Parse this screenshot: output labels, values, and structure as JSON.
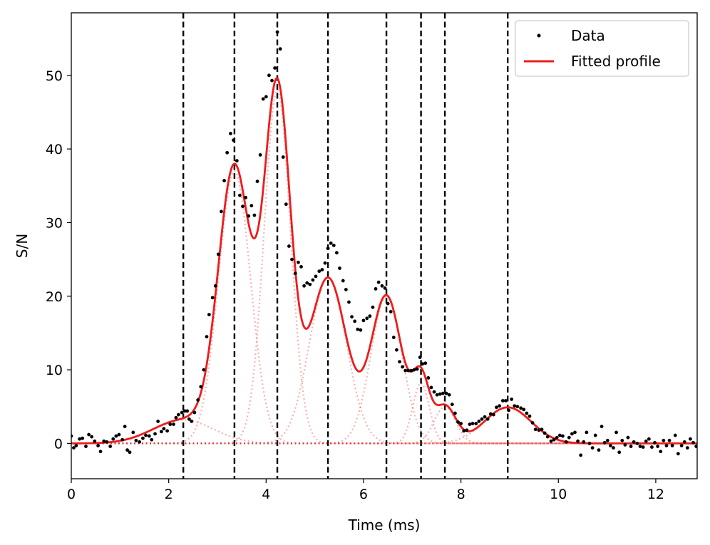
{
  "chart_data": {
    "type": "scatter",
    "title": "",
    "xlabel": "Time (ms)",
    "ylabel": "S/N",
    "xlim": [
      0,
      12.85
    ],
    "ylim": [
      -4.8,
      58.5
    ],
    "xticks": [
      0,
      2,
      4,
      6,
      8,
      10,
      12
    ],
    "yticks": [
      0,
      10,
      20,
      30,
      40,
      50
    ],
    "xtick_labels": [
      "0",
      "2",
      "4",
      "6",
      "8",
      "10",
      "12"
    ],
    "ytick_labels": [
      "0",
      "10",
      "20",
      "30",
      "40",
      "50"
    ],
    "grid": false,
    "legend": {
      "position": "top-right",
      "entries": [
        {
          "label": "Data",
          "marker": "dot",
          "color": "#000000"
        },
        {
          "label": "Fitted profile",
          "marker": "line",
          "color": "#ee1c1c"
        }
      ]
    },
    "vlines": [
      2.3,
      3.35,
      4.23,
      5.27,
      6.47,
      7.18,
      7.67,
      8.96
    ],
    "components": [
      {
        "amp": 3.2,
        "mu": 2.3,
        "sigma": 0.62
      },
      {
        "amp": 37.0,
        "mu": 3.35,
        "sigma": 0.33
      },
      {
        "amp": 48.0,
        "mu": 4.23,
        "sigma": 0.27
      },
      {
        "amp": 22.5,
        "mu": 5.27,
        "sigma": 0.38
      },
      {
        "amp": 20.0,
        "mu": 6.47,
        "sigma": 0.32
      },
      {
        "amp": 8.2,
        "mu": 7.18,
        "sigma": 0.17
      },
      {
        "amp": 5.0,
        "mu": 7.67,
        "sigma": 0.22
      },
      {
        "amp": 4.9,
        "mu": 8.96,
        "sigma": 0.48
      }
    ],
    "series": [
      {
        "name": "Data",
        "points": [
          [
            0.0,
            1.0
          ],
          [
            0.05,
            -0.6
          ],
          [
            0.1,
            -0.3
          ],
          [
            0.17,
            0.6
          ],
          [
            0.23,
            0.7
          ],
          [
            0.3,
            -0.4
          ],
          [
            0.36,
            1.2
          ],
          [
            0.42,
            0.9
          ],
          [
            0.48,
            0.3
          ],
          [
            0.55,
            -0.3
          ],
          [
            0.6,
            -1.1
          ],
          [
            0.67,
            0.3
          ],
          [
            0.73,
            0.2
          ],
          [
            0.8,
            -0.4
          ],
          [
            0.86,
            0.6
          ],
          [
            0.92,
            1.0
          ],
          [
            0.98,
            1.2
          ],
          [
            1.05,
            0.5
          ],
          [
            1.1,
            2.3
          ],
          [
            1.15,
            -0.9
          ],
          [
            1.2,
            -1.2
          ],
          [
            1.27,
            1.5
          ],
          [
            1.33,
            0.4
          ],
          [
            1.4,
            0.2
          ],
          [
            1.47,
            0.7
          ],
          [
            1.53,
            1.1
          ],
          [
            1.6,
            1.0
          ],
          [
            1.65,
            0.5
          ],
          [
            1.72,
            1.3
          ],
          [
            1.78,
            3.0
          ],
          [
            1.85,
            1.6
          ],
          [
            1.9,
            2.0
          ],
          [
            1.97,
            1.7
          ],
          [
            2.03,
            2.6
          ],
          [
            2.1,
            2.6
          ],
          [
            2.15,
            3.5
          ],
          [
            2.2,
            3.9
          ],
          [
            2.27,
            4.2
          ],
          [
            2.33,
            4.4
          ],
          [
            2.38,
            4.4
          ],
          [
            2.42,
            3.3
          ],
          [
            2.47,
            3.0
          ],
          [
            2.53,
            4.2
          ],
          [
            2.6,
            5.9
          ],
          [
            2.66,
            7.7
          ],
          [
            2.72,
            10.0
          ],
          [
            2.78,
            14.5
          ],
          [
            2.83,
            17.5
          ],
          [
            2.9,
            19.8
          ],
          [
            2.96,
            21.4
          ],
          [
            3.02,
            25.7
          ],
          [
            3.08,
            31.5
          ],
          [
            3.14,
            35.7
          ],
          [
            3.2,
            39.5
          ],
          [
            3.27,
            42.1
          ],
          [
            3.33,
            41.2
          ],
          [
            3.4,
            38.4
          ],
          [
            3.46,
            33.7
          ],
          [
            3.52,
            32.2
          ],
          [
            3.58,
            33.4
          ],
          [
            3.64,
            30.9
          ],
          [
            3.7,
            32.3
          ],
          [
            3.76,
            31.0
          ],
          [
            3.82,
            35.6
          ],
          [
            3.88,
            39.2
          ],
          [
            3.94,
            46.8
          ],
          [
            4.0,
            47.1
          ],
          [
            4.06,
            50.0
          ],
          [
            4.12,
            49.3
          ],
          [
            4.18,
            51.0
          ],
          [
            4.23,
            55.9
          ],
          [
            4.29,
            53.6
          ],
          [
            4.35,
            38.9
          ],
          [
            4.41,
            32.5
          ],
          [
            4.47,
            26.8
          ],
          [
            4.53,
            25.0
          ],
          [
            4.6,
            23.1
          ],
          [
            4.66,
            24.6
          ],
          [
            4.72,
            24.0
          ],
          [
            4.78,
            21.4
          ],
          [
            4.84,
            21.8
          ],
          [
            4.9,
            21.6
          ],
          [
            4.96,
            22.2
          ],
          [
            5.02,
            22.7
          ],
          [
            5.09,
            23.4
          ],
          [
            5.15,
            23.6
          ],
          [
            5.21,
            24.5
          ],
          [
            5.27,
            26.5
          ],
          [
            5.33,
            27.2
          ],
          [
            5.39,
            26.9
          ],
          [
            5.45,
            25.9
          ],
          [
            5.51,
            23.8
          ],
          [
            5.58,
            22.1
          ],
          [
            5.64,
            20.9
          ],
          [
            5.7,
            19.2
          ],
          [
            5.76,
            17.2
          ],
          [
            5.82,
            16.6
          ],
          [
            5.88,
            15.5
          ],
          [
            5.94,
            15.4
          ],
          [
            6.0,
            16.7
          ],
          [
            6.07,
            17.0
          ],
          [
            6.13,
            17.3
          ],
          [
            6.19,
            18.5
          ],
          [
            6.25,
            21.0
          ],
          [
            6.31,
            21.9
          ],
          [
            6.38,
            21.4
          ],
          [
            6.44,
            21.1
          ],
          [
            6.5,
            19.0
          ],
          [
            6.56,
            17.9
          ],
          [
            6.62,
            14.4
          ],
          [
            6.68,
            12.7
          ],
          [
            6.74,
            11.1
          ],
          [
            6.8,
            10.4
          ],
          [
            6.86,
            9.9
          ],
          [
            6.92,
            9.9
          ],
          [
            6.98,
            9.9
          ],
          [
            7.04,
            10.0
          ],
          [
            7.1,
            10.1
          ],
          [
            7.16,
            11.7
          ],
          [
            7.21,
            10.8
          ],
          [
            7.27,
            10.9
          ],
          [
            7.33,
            8.9
          ],
          [
            7.39,
            7.6
          ],
          [
            7.45,
            7.0
          ],
          [
            7.51,
            6.6
          ],
          [
            7.57,
            6.7
          ],
          [
            7.63,
            6.8
          ],
          [
            7.7,
            6.8
          ],
          [
            7.76,
            6.6
          ],
          [
            7.82,
            5.3
          ],
          [
            7.88,
            4.1
          ],
          [
            7.94,
            2.9
          ],
          [
            8.0,
            2.7
          ],
          [
            8.06,
            1.7
          ],
          [
            8.12,
            1.8
          ],
          [
            8.18,
            2.6
          ],
          [
            8.24,
            2.7
          ],
          [
            8.31,
            2.7
          ],
          [
            8.37,
            3.0
          ],
          [
            8.43,
            3.3
          ],
          [
            8.49,
            3.6
          ],
          [
            8.55,
            3.3
          ],
          [
            8.61,
            4.0
          ],
          [
            8.67,
            3.9
          ],
          [
            8.73,
            4.9
          ],
          [
            8.79,
            5.1
          ],
          [
            8.86,
            5.8
          ],
          [
            8.92,
            5.8
          ],
          [
            8.98,
            4.5
          ],
          [
            9.04,
            6.0
          ],
          [
            9.1,
            5.1
          ],
          [
            9.16,
            5.0
          ],
          [
            9.23,
            4.8
          ],
          [
            9.29,
            4.6
          ],
          [
            9.35,
            4.1
          ],
          [
            9.41,
            3.7
          ],
          [
            9.47,
            2.8
          ],
          [
            9.53,
            1.9
          ],
          [
            9.6,
            1.8
          ],
          [
            9.66,
            1.9
          ],
          [
            9.72,
            1.4
          ],
          [
            9.78,
            0.9
          ],
          [
            9.85,
            0.3
          ],
          [
            9.91,
            0.5
          ],
          [
            9.97,
            0.8
          ],
          [
            10.03,
            1.1
          ],
          [
            10.09,
            1.0
          ],
          [
            10.16,
            0.2
          ],
          [
            10.22,
            0.8
          ],
          [
            10.28,
            1.3
          ],
          [
            10.34,
            1.5
          ],
          [
            10.4,
            0.3
          ],
          [
            10.46,
            -1.6
          ],
          [
            10.52,
            0.2
          ],
          [
            10.58,
            1.5
          ],
          [
            10.64,
            0.0
          ],
          [
            10.7,
            -0.6
          ],
          [
            10.76,
            1.1
          ],
          [
            10.83,
            -0.9
          ],
          [
            10.89,
            2.3
          ],
          [
            10.95,
            0.1
          ],
          [
            11.01,
            0.4
          ],
          [
            11.07,
            -0.3
          ],
          [
            11.13,
            -0.6
          ],
          [
            11.19,
            1.5
          ],
          [
            11.25,
            -1.2
          ],
          [
            11.31,
            0.4
          ],
          [
            11.37,
            -0.2
          ],
          [
            11.43,
            0.8
          ],
          [
            11.49,
            -0.4
          ],
          [
            11.55,
            0.2
          ],
          [
            11.62,
            0.0
          ],
          [
            11.68,
            -0.4
          ],
          [
            11.74,
            -0.5
          ],
          [
            11.8,
            0.3
          ],
          [
            11.86,
            0.6
          ],
          [
            11.92,
            -0.5
          ],
          [
            11.98,
            0.1
          ],
          [
            12.04,
            -0.4
          ],
          [
            12.1,
            -1.1
          ],
          [
            12.16,
            0.4
          ],
          [
            12.22,
            -0.3
          ],
          [
            12.28,
            0.4
          ],
          [
            12.34,
            -0.3
          ],
          [
            12.4,
            1.1
          ],
          [
            12.46,
            -1.4
          ],
          [
            12.53,
            -0.3
          ],
          [
            12.59,
            0.2
          ],
          [
            12.65,
            -0.6
          ],
          [
            12.71,
            0.6
          ],
          [
            12.77,
            0.1
          ],
          [
            12.83,
            -0.4
          ]
        ]
      },
      {
        "name": "Fitted profile",
        "kind": "sum_of_components"
      }
    ]
  }
}
